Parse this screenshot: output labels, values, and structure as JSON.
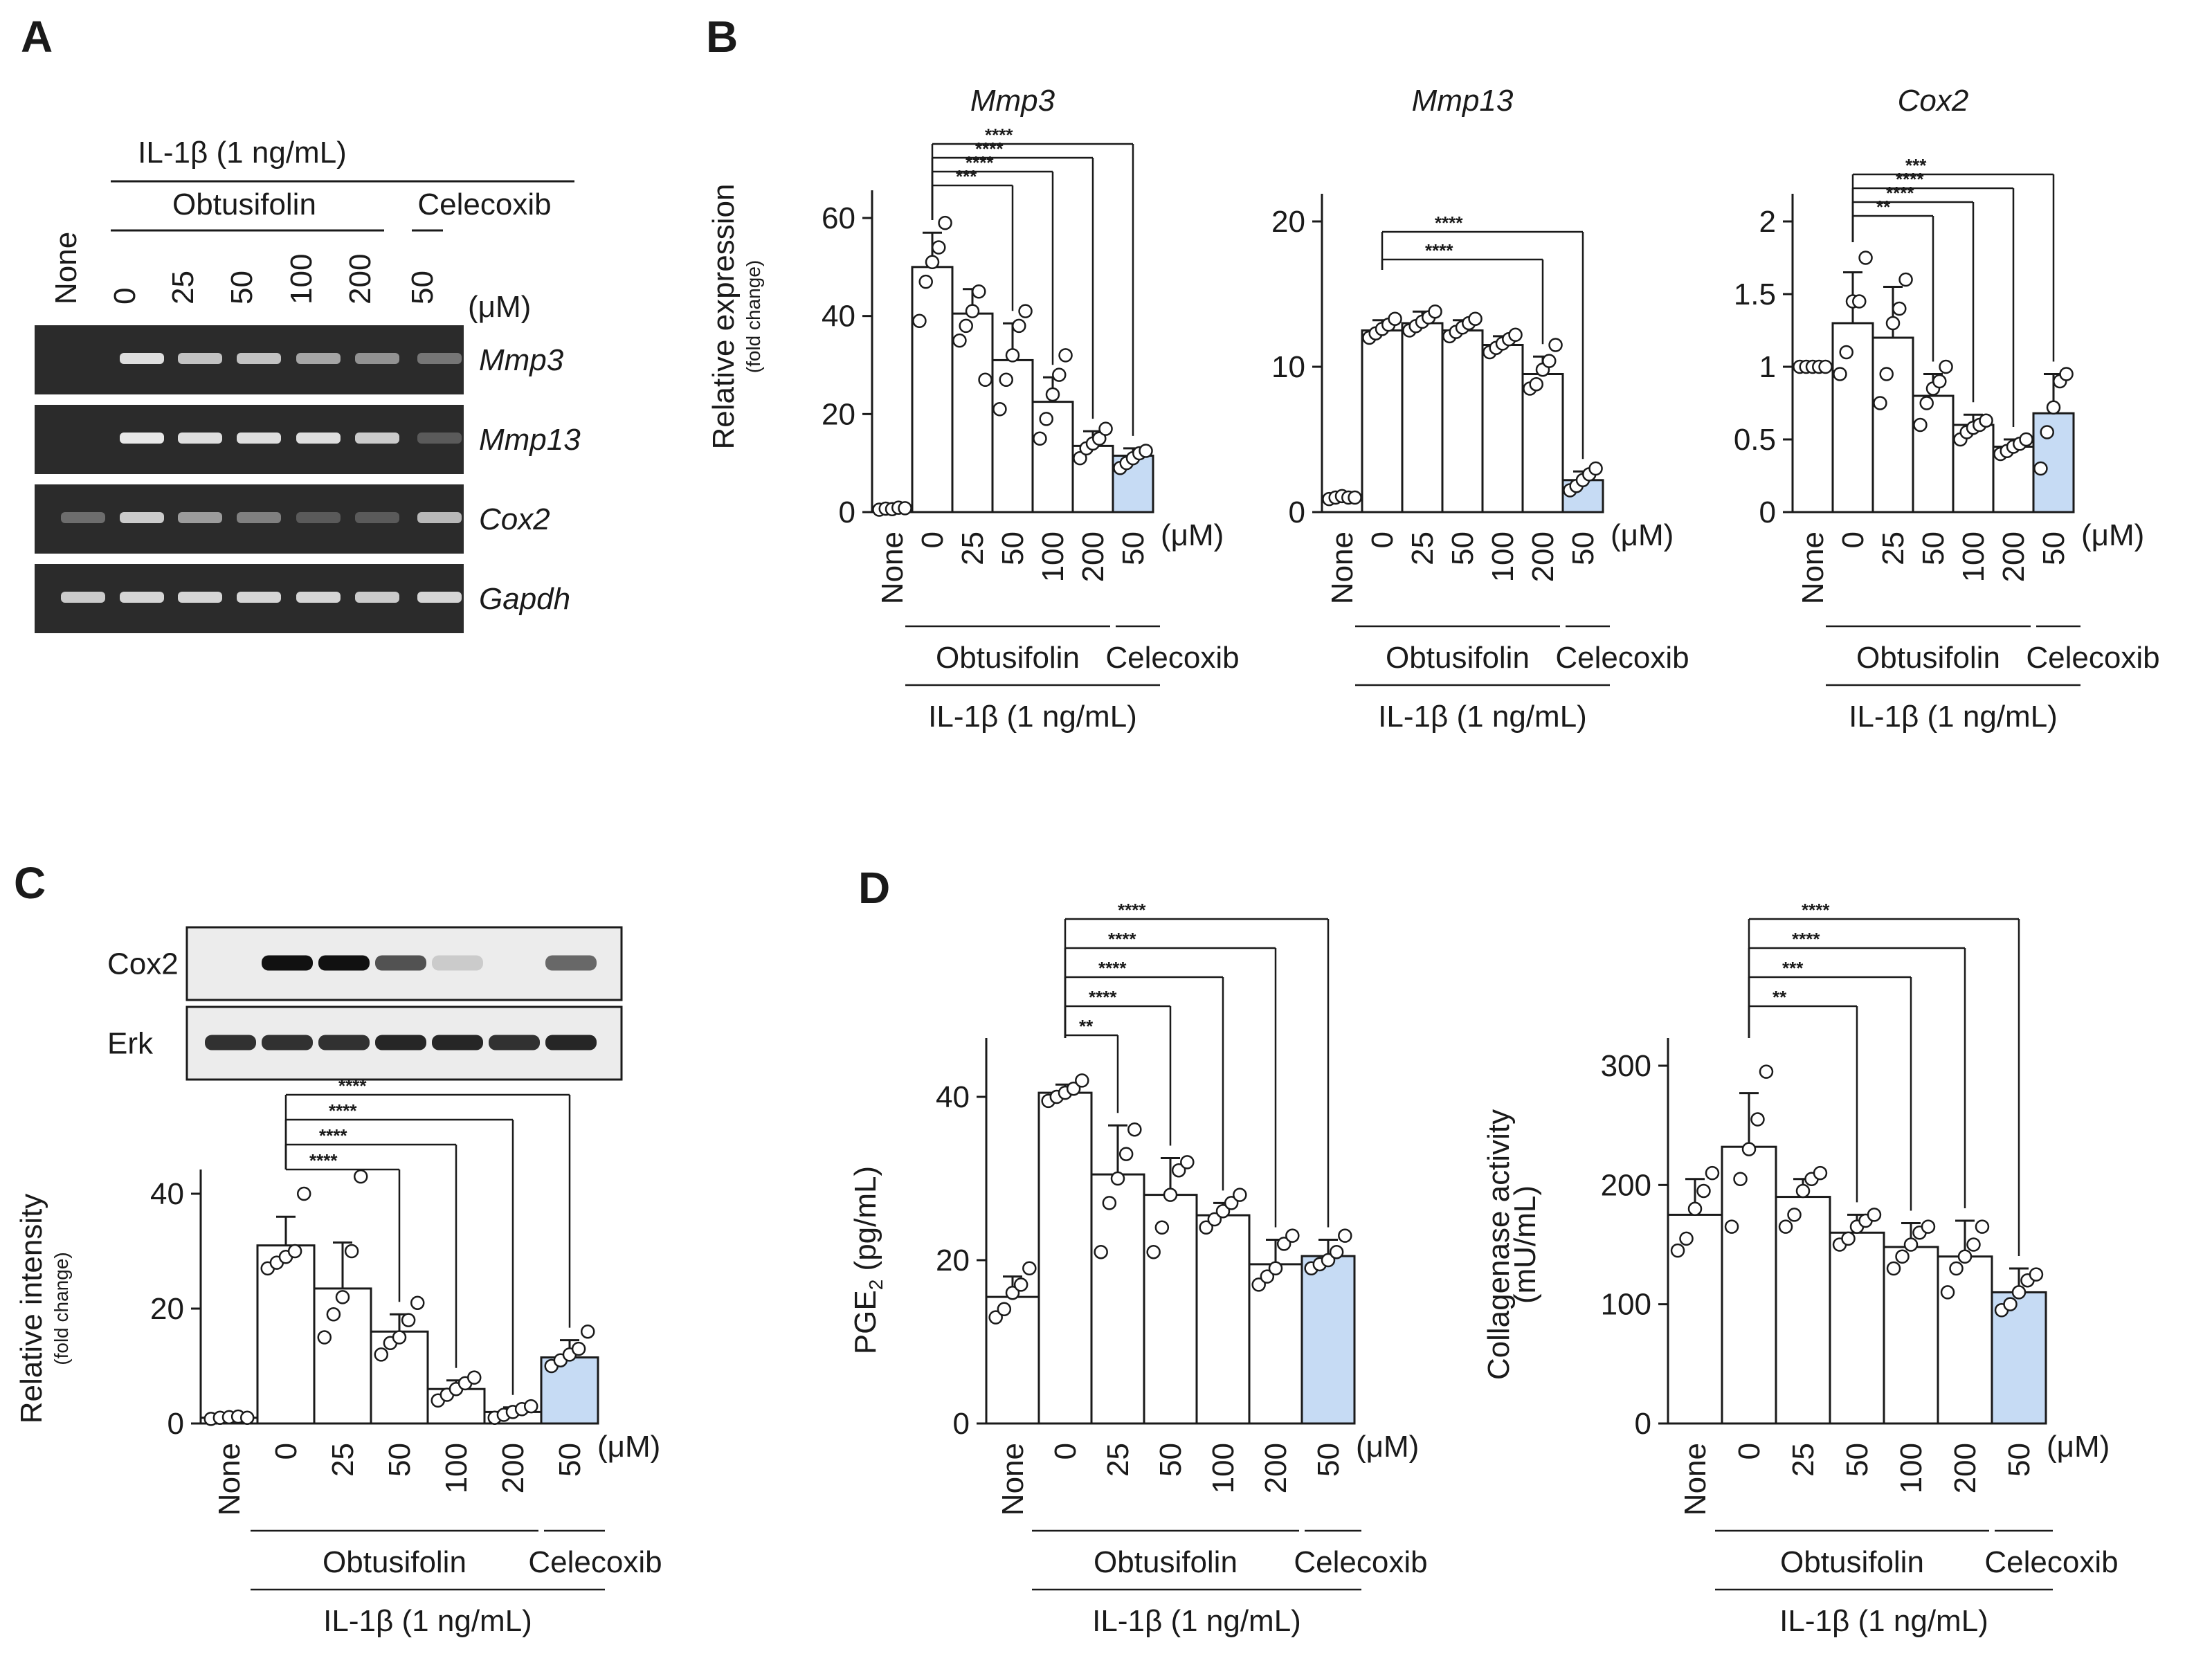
{
  "panels": {
    "A": "A",
    "B": "B",
    "C": "C",
    "D": "D"
  },
  "units": "(μM)",
  "treatment": "IL-1β (1 ng/mL)",
  "drug": "Obtusifolin",
  "control_drug": "Celecoxib",
  "categories": [
    "None",
    "0",
    "25",
    "50",
    "100",
    "200",
    "50"
  ],
  "colors": {
    "bar": "#ffffff",
    "celecoxib_bar": "#c6dbf4",
    "stroke": "#1a1a1a",
    "gel": "#2b2b2b",
    "band": "#e8e8e8",
    "blot_bg": "#ececec",
    "blot_band": "#111111"
  },
  "panel_a": {
    "gels": [
      {
        "gene": "Mmp3",
        "intensities": [
          0.05,
          0.95,
          0.8,
          0.8,
          0.65,
          0.55,
          0.4
        ]
      },
      {
        "gene": "Mmp13",
        "intensities": [
          0.05,
          1.0,
          0.95,
          0.95,
          0.95,
          0.85,
          0.25
        ]
      },
      {
        "gene": "Cox2",
        "intensities": [
          0.35,
          0.85,
          0.6,
          0.45,
          0.25,
          0.25,
          0.75
        ]
      },
      {
        "gene": "Gapdh",
        "intensities": [
          0.85,
          0.9,
          0.9,
          0.9,
          0.9,
          0.85,
          0.9
        ]
      }
    ]
  },
  "panel_c": {
    "blots": [
      {
        "name": "Cox2",
        "intensities": [
          0.0,
          1.0,
          1.0,
          0.7,
          0.15,
          0.0,
          0.6
        ]
      },
      {
        "name": "Erk",
        "intensities": [
          0.85,
          0.85,
          0.85,
          0.9,
          0.9,
          0.85,
          0.9
        ]
      }
    ]
  },
  "chart_data": [
    {
      "type": "bar",
      "title": "Mmp3",
      "ylabel": "Relative expression",
      "ylabel_sub": "(fold change)",
      "yticks": [
        0,
        20,
        40,
        60
      ],
      "ylim": [
        0,
        60
      ],
      "categories": [
        "None",
        "0",
        "25",
        "50",
        "100",
        "200",
        "50"
      ],
      "values": [
        0.7,
        50,
        40.5,
        31,
        22.5,
        13.5,
        11.5
      ],
      "errors": [
        0.3,
        7,
        5,
        7.5,
        5,
        3,
        1.5
      ],
      "points": [
        [
          0.5,
          0.7,
          0.6,
          0.9,
          0.8
        ],
        [
          39,
          47,
          51,
          54,
          59
        ],
        [
          35,
          38,
          41,
          45,
          27
        ],
        [
          21,
          27,
          32,
          38,
          41
        ],
        [
          15,
          19,
          24,
          28,
          32
        ],
        [
          11,
          13,
          14,
          15,
          17
        ],
        [
          9,
          10,
          11,
          12,
          12.5
        ]
      ],
      "significance": [
        {
          "target": "50",
          "label": "***"
        },
        {
          "target": "100",
          "label": "****"
        },
        {
          "target": "200",
          "label": "****"
        },
        {
          "target": "50",
          "label": "****"
        }
      ]
    },
    {
      "type": "bar",
      "title": "Mmp13",
      "ylabel": "",
      "yticks": [
        0,
        10,
        20
      ],
      "ylim": [
        0,
        20
      ],
      "categories": [
        "None",
        "0",
        "25",
        "50",
        "100",
        "200",
        "50"
      ],
      "values": [
        1,
        12.5,
        13,
        12.5,
        11.5,
        9.5,
        2.2
      ],
      "errors": [
        0.3,
        0.7,
        0.8,
        0.7,
        0.6,
        1.2,
        0.6
      ],
      "points": [
        [
          0.9,
          1.0,
          1.1,
          1.0,
          1.0
        ],
        [
          12,
          12.3,
          12.6,
          12.9,
          13.3
        ],
        [
          12.5,
          12.8,
          13.1,
          13.4,
          13.8
        ],
        [
          12.1,
          12.4,
          12.7,
          13.0,
          13.3
        ],
        [
          11,
          11.3,
          11.6,
          11.9,
          12.2
        ],
        [
          8.5,
          8.8,
          9.8,
          10.4,
          11.5
        ],
        [
          1.5,
          1.8,
          2.2,
          2.6,
          3.0
        ]
      ],
      "significance": [
        {
          "target": "200",
          "label": "****"
        },
        {
          "target": "50",
          "label": "****"
        }
      ]
    },
    {
      "type": "bar",
      "title": "Cox2",
      "ylabel": "",
      "yticks": [
        0,
        0.5,
        1,
        1.5,
        2
      ],
      "ylim": [
        0,
        2
      ],
      "categories": [
        "None",
        "0",
        "25",
        "50",
        "100",
        "200",
        "50"
      ],
      "values": [
        1,
        1.3,
        1.2,
        0.8,
        0.6,
        0.45,
        0.68
      ],
      "errors": [
        0.02,
        0.35,
        0.35,
        0.15,
        0.07,
        0.05,
        0.27
      ],
      "points": [
        [
          1.0,
          1.0,
          1.0,
          1.0,
          1.0
        ],
        [
          0.95,
          1.1,
          1.45,
          1.45,
          1.75
        ],
        [
          0.75,
          0.95,
          1.3,
          1.4,
          1.6
        ],
        [
          0.6,
          0.75,
          0.85,
          0.9,
          1.0
        ],
        [
          0.5,
          0.55,
          0.58,
          0.6,
          0.63
        ],
        [
          0.4,
          0.42,
          0.45,
          0.47,
          0.5
        ],
        [
          0.3,
          0.55,
          0.72,
          0.9,
          0.95
        ]
      ],
      "significance": [
        {
          "target": "50",
          "label": "**"
        },
        {
          "target": "100",
          "label": "****"
        },
        {
          "target": "200",
          "label": "****"
        },
        {
          "target": "50",
          "label": "***"
        }
      ]
    },
    {
      "type": "bar",
      "title": "",
      "ylabel": "Relative intensity",
      "ylabel_sub": "(fold change)",
      "yticks": [
        0,
        20,
        40
      ],
      "ylim": [
        0,
        40
      ],
      "categories": [
        "None",
        "0",
        "25",
        "50",
        "100",
        "200",
        "50"
      ],
      "values": [
        1,
        31,
        23.5,
        16,
        6,
        2,
        11.5
      ],
      "errors": [
        0.3,
        5,
        8,
        3,
        1.5,
        0.8,
        3
      ],
      "points": [
        [
          0.8,
          1.0,
          1.1,
          1.2,
          1.0
        ],
        [
          27,
          28,
          29,
          30,
          40
        ],
        [
          15,
          19,
          22,
          30,
          43
        ],
        [
          12,
          14,
          15,
          18,
          21
        ],
        [
          4,
          5,
          6,
          7,
          8
        ],
        [
          1,
          1.5,
          2,
          2.5,
          3
        ],
        [
          10,
          11,
          12,
          13,
          16
        ]
      ],
      "significance": [
        {
          "target": "50",
          "label": "****"
        },
        {
          "target": "100",
          "label": "****"
        },
        {
          "target": "200",
          "label": "****"
        },
        {
          "target": "50",
          "label": "****"
        }
      ]
    },
    {
      "type": "bar",
      "title": "",
      "ylabel": "PGE",
      "ylabel_sub2": "2",
      "ylabel_unit": " (pg/mL)",
      "yticks": [
        0,
        20,
        40
      ],
      "ylim": [
        0,
        40
      ],
      "categories": [
        "None",
        "0",
        "25",
        "50",
        "100",
        "200",
        "50"
      ],
      "values": [
        15.5,
        40.5,
        30.5,
        28,
        25.5,
        19.5,
        20.5
      ],
      "errors": [
        2.5,
        1,
        6,
        4.5,
        1.5,
        3,
        2
      ],
      "points": [
        [
          13,
          14,
          16,
          17,
          19
        ],
        [
          39.5,
          40,
          40.5,
          41,
          42
        ],
        [
          21,
          27,
          30,
          33,
          36
        ],
        [
          21,
          24,
          28,
          31,
          32
        ],
        [
          24,
          25,
          26,
          27,
          28
        ],
        [
          17,
          18,
          19,
          22,
          23
        ],
        [
          19,
          19.5,
          20,
          21,
          23
        ]
      ],
      "significance": [
        {
          "target": "25",
          "label": "**"
        },
        {
          "target": "50",
          "label": "****"
        },
        {
          "target": "100",
          "label": "****"
        },
        {
          "target": "200",
          "label": "****"
        },
        {
          "target": "50",
          "label": "****"
        }
      ]
    },
    {
      "type": "bar",
      "title": "",
      "ylabel": "Collagenase activity",
      "ylabel_sub": "(mU/mL)",
      "yticks": [
        0,
        100,
        200,
        300
      ],
      "ylim": [
        0,
        300
      ],
      "categories": [
        "None",
        "0",
        "25",
        "50",
        "100",
        "200",
        "50"
      ],
      "values": [
        175,
        232,
        190,
        160,
        148,
        140,
        110
      ],
      "errors": [
        30,
        45,
        15,
        15,
        20,
        30,
        20
      ],
      "points": [
        [
          145,
          155,
          180,
          195,
          210
        ],
        [
          165,
          205,
          230,
          255,
          295
        ],
        [
          165,
          175,
          195,
          205,
          210
        ],
        [
          150,
          155,
          165,
          170,
          175
        ],
        [
          130,
          140,
          150,
          160,
          165
        ],
        [
          110,
          130,
          140,
          150,
          165
        ],
        [
          95,
          100,
          110,
          120,
          125
        ]
      ],
      "significance": [
        {
          "target": "50",
          "label": "**"
        },
        {
          "target": "100",
          "label": "***"
        },
        {
          "target": "200",
          "label": "****"
        },
        {
          "target": "50",
          "label": "****"
        }
      ]
    }
  ]
}
